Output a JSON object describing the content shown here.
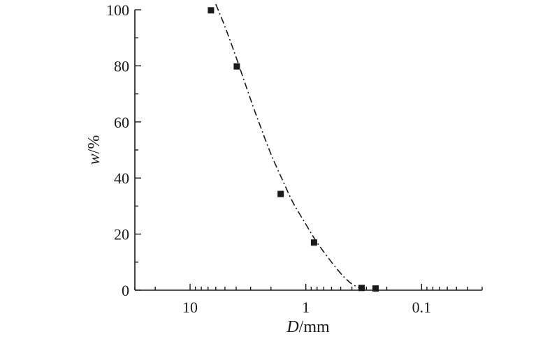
{
  "chart_data": {
    "type": "scatter",
    "title": "",
    "xlabel_italic": "D",
    "xlabel_unit": "/mm",
    "ylabel_italic": "w",
    "ylabel_unit": "/%",
    "x_scale": "log",
    "x_reversed": true,
    "xlim": [
      30,
      0.03
    ],
    "ylim": [
      0,
      100
    ],
    "x_ticks": [
      {
        "value": 10,
        "label": "10"
      },
      {
        "value": 1,
        "label": "1"
      },
      {
        "value": 0.1,
        "label": "0.1"
      }
    ],
    "y_ticks": [
      {
        "value": 0,
        "label": "0"
      },
      {
        "value": 20,
        "label": "20"
      },
      {
        "value": 40,
        "label": "40"
      },
      {
        "value": 60,
        "label": "60"
      },
      {
        "value": 80,
        "label": "80"
      },
      {
        "value": 100,
        "label": "100"
      }
    ],
    "grid": false,
    "series": [
      {
        "marker": "square",
        "x": [
          6.6,
          3.95,
          1.65,
          0.85,
          0.33,
          0.25
        ],
        "y": [
          99.8,
          79.8,
          34.3,
          17.0,
          0.8,
          0.6
        ]
      }
    ],
    "fit_curve": {
      "style": "dash-dot",
      "x": [
        6.0,
        5.0,
        4.0,
        3.0,
        2.5,
        2.0,
        1.6,
        1.3,
        1.0,
        0.8,
        0.6,
        0.5,
        0.45,
        0.4,
        0.36,
        0.33,
        0.3
      ],
      "y": [
        102,
        94,
        83,
        68,
        59,
        48.5,
        39.5,
        31.5,
        23.5,
        17,
        10,
        6,
        4,
        2.2,
        1.2,
        0.6,
        0.4
      ]
    }
  }
}
